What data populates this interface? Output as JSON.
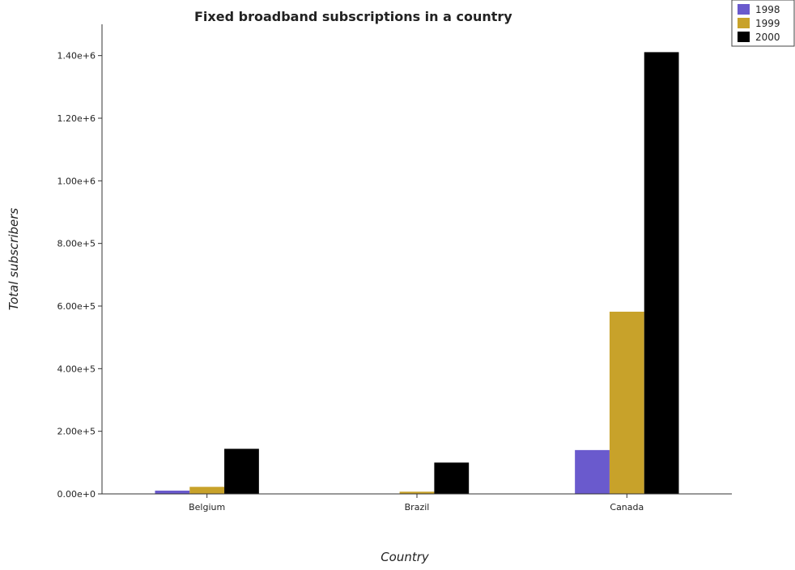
{
  "chart_data": {
    "type": "bar",
    "title": "Fixed broadband subscriptions in a country",
    "xlabel": "Country",
    "ylabel": "Total subscribers",
    "categories": [
      "Belgium",
      "Brazil",
      "Canada"
    ],
    "series": [
      {
        "name": "1998",
        "color": "#6a5acd",
        "values": [
          10500,
          1000,
          140000
        ]
      },
      {
        "name": "1999",
        "color": "#c8a22a",
        "values": [
          22500,
          7000,
          582000
        ]
      },
      {
        "name": "2000",
        "color": "#000000",
        "values": [
          144000,
          100000,
          1411000
        ]
      }
    ],
    "ylim": [
      0,
      1500000
    ],
    "yticks": [
      0,
      200000,
      400000,
      600000,
      800000,
      1000000,
      1200000,
      1400000
    ],
    "ytick_labels": [
      "0.00e+0",
      "2.00e+5",
      "4.00e+5",
      "6.00e+5",
      "8.00e+5",
      "1.00e+6",
      "1.20e+6",
      "1.40e+6"
    ],
    "grid": false,
    "legend_position": "top-right"
  }
}
